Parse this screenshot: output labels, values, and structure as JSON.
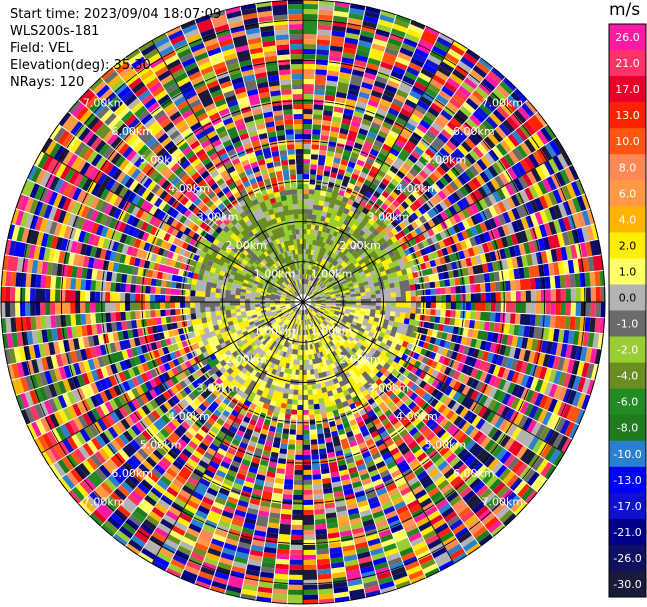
{
  "info": {
    "start_time": "Start time: 2023/09/04 18:07:09",
    "instrument": "WLS200s-181",
    "field": "Field: VEL",
    "elevation": "Elevation(deg): 35.30",
    "nrays": "NRays: 120"
  },
  "colorbar": {
    "unit": "m/s",
    "ticks": [
      "26.0",
      "21.0",
      "17.0",
      "13.0",
      "10.0",
      "8.0",
      "6.0",
      "4.0",
      "2.0",
      "1.0",
      "0.0",
      "-1.0",
      "-2.0",
      "-4.0",
      "-6.0",
      "-8.0",
      "-10.0",
      "-13.0",
      "-17.0",
      "-21.0",
      "-26.0",
      "-30.0"
    ],
    "colors": [
      "#ff1aa3",
      "#ff3366",
      "#e8002a",
      "#ff2200",
      "#ff5511",
      "#ff8855",
      "#ff9944",
      "#ffb300",
      "#ffee00",
      "#ffff66",
      "#b3b3b3",
      "#6b6b6b",
      "#9acd32",
      "#6b8e23",
      "#228b22",
      "#1e7b1e",
      "#2a7fcf",
      "#0000ff",
      "#1010d0",
      "#00008b",
      "#101060",
      "#1a1a3a"
    ]
  },
  "chart_data": {
    "type": "ppi",
    "title": "",
    "field": "VEL",
    "units": "m/s",
    "nrays": 120,
    "elevation_deg": 35.3,
    "range_ring_labels": [
      "1.00km",
      "2.00km",
      "3.00km",
      "4.00km",
      "5.00km",
      "6.00km",
      "7.00km"
    ],
    "spoke_angles_deg": [
      0,
      30,
      60,
      90,
      120,
      150,
      180,
      210,
      240,
      270,
      300,
      330
    ],
    "color_levels": [
      -30,
      -26,
      -21,
      -17,
      -13,
      -10,
      -8,
      -6,
      -4,
      -2,
      -1,
      0,
      1,
      2,
      4,
      6,
      8,
      10,
      13,
      17,
      21,
      26
    ],
    "near_field": {
      "max_range_km": 3.0,
      "north_sector": "negative (-1 to -4 m/s)",
      "south_sector": "positive (+1 to +4 m/s)",
      "background": "near zero (0 to -1 m/s)"
    },
    "far_field": {
      "description": "noise speckle across full velocity range"
    }
  }
}
